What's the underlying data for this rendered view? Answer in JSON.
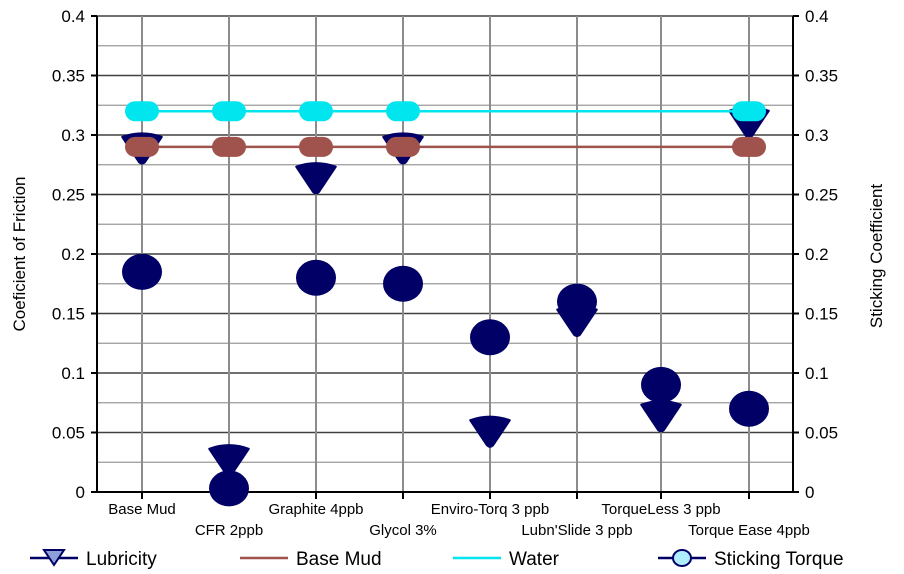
{
  "chart_data": {
    "type": "scatter",
    "title": "",
    "ylabel_left": "Coeficient of Friction",
    "ylabel_right": "Sticking Coefficient",
    "ylim": [
      0,
      0.4
    ],
    "y_ticks": [
      "0",
      "0.05",
      "0.1",
      "0.15",
      "0.2",
      "0.25",
      "0.3",
      "0.35",
      "0.4"
    ],
    "y_tick_values": [
      0,
      0.05,
      0.1,
      0.15,
      0.2,
      0.25,
      0.3,
      0.35,
      0.4
    ],
    "categories": [
      "Base Mud",
      "CFR 2ppb",
      "Graphite 4ppb",
      "Glycol 3%",
      "Enviro-Torq 3 ppb",
      "Lubn'Slide 3 ppb",
      "TorqueLess 3 ppb",
      "Torque Ease 4ppb"
    ],
    "grid": true,
    "legend_placement": "bottom",
    "series": [
      {
        "name": "Lubricity",
        "marker": "triangle-down",
        "color": "#000066",
        "values": [
          0.29,
          0.028,
          0.265,
          0.29,
          0.052,
          0.145,
          0.065,
          0.312
        ]
      },
      {
        "name": "Base Mud",
        "marker": "none",
        "color": "#A0524D",
        "values": [
          0.29,
          0.29,
          0.29,
          0.29,
          null,
          null,
          null,
          0.29
        ]
      },
      {
        "name": "Water",
        "marker": "none",
        "color": "#00E5EE",
        "values": [
          0.32,
          0.32,
          0.32,
          0.32,
          null,
          null,
          null,
          0.32
        ]
      },
      {
        "name": "Sticking Torque",
        "marker": "circle",
        "color": "#000066",
        "values": [
          0.185,
          0.003,
          0.18,
          0.175,
          0.13,
          0.16,
          0.09,
          0.07
        ]
      }
    ]
  }
}
